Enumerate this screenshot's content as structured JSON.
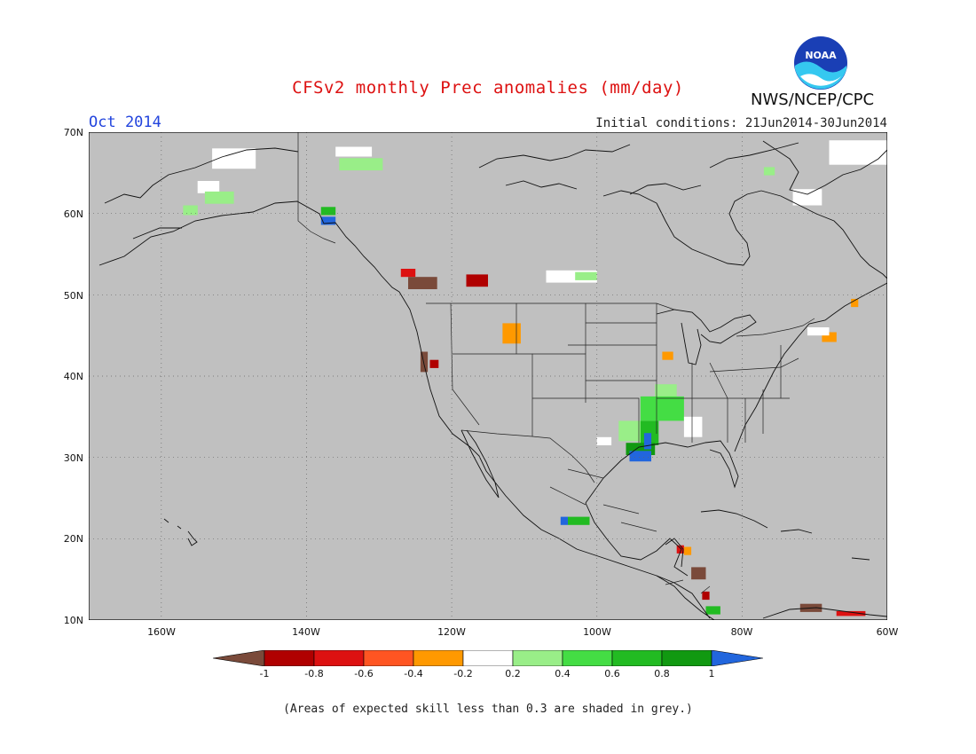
{
  "header": {
    "title": "CFSv2 monthly Prec anomalies (mm/day)",
    "month": "Oct 2014",
    "initial_conditions": "Initial conditions: 21Jun2014-30Jun2014",
    "organization": "NWS/NCEP/CPC",
    "logo_text": "NOAA"
  },
  "map": {
    "lon_range": [
      -170,
      -60
    ],
    "lat_range": [
      10,
      70
    ],
    "background_color": "#c0c0c0",
    "grid": "dotted",
    "y_ticks": [
      "70N",
      "60N",
      "50N",
      "40N",
      "30N",
      "20N",
      "10N"
    ],
    "x_ticks": [
      "160W",
      "140W",
      "120W",
      "100W",
      "80W",
      "60W"
    ]
  },
  "colorbar": {
    "labels": [
      "-1",
      "-0.8",
      "-0.6",
      "-0.4",
      "-0.2",
      "0.2",
      "0.4",
      "0.6",
      "0.8",
      "1"
    ],
    "colors": [
      "#7a4a3a",
      "#b00000",
      "#dd1111",
      "#ff5522",
      "#ff9900",
      "#ffffff",
      "#99ee88",
      "#44dd44",
      "#22bb22",
      "#119911",
      "#2266dd"
    ]
  },
  "anomaly_cells": [
    {
      "lon": -153,
      "lat": 65.5,
      "w": 6,
      "h": 2.5,
      "color": "#ffffff"
    },
    {
      "lon": -155,
      "lat": 62.5,
      "w": 3,
      "h": 1.5,
      "color": "#ffffff"
    },
    {
      "lon": -154,
      "lat": 61.2,
      "w": 4,
      "h": 1.5,
      "color": "#99ee88"
    },
    {
      "lon": -157,
      "lat": 59.8,
      "w": 2,
      "h": 1.2,
      "color": "#99ee88"
    },
    {
      "lon": -136,
      "lat": 67,
      "w": 5,
      "h": 1.2,
      "color": "#ffffff"
    },
    {
      "lon": -135.5,
      "lat": 65.3,
      "w": 6,
      "h": 1.5,
      "color": "#99ee88"
    },
    {
      "lon": -138,
      "lat": 59.8,
      "w": 2,
      "h": 1,
      "color": "#22bb22"
    },
    {
      "lon": -138,
      "lat": 58.6,
      "w": 2,
      "h": 1,
      "color": "#2266dd"
    },
    {
      "lon": -127,
      "lat": 52.2,
      "w": 2,
      "h": 1,
      "color": "#dd1111"
    },
    {
      "lon": -126,
      "lat": 50.7,
      "w": 4,
      "h": 1.5,
      "color": "#7a4a3a"
    },
    {
      "lon": -118,
      "lat": 51,
      "w": 3,
      "h": 1.5,
      "color": "#b00000"
    },
    {
      "lon": -113,
      "lat": 44,
      "w": 2.5,
      "h": 2.5,
      "color": "#ff9900"
    },
    {
      "lon": -124.3,
      "lat": 40.5,
      "w": 1,
      "h": 2.5,
      "color": "#7a4a3a"
    },
    {
      "lon": -123,
      "lat": 41,
      "w": 1.2,
      "h": 1,
      "color": "#b00000"
    },
    {
      "lon": -107,
      "lat": 51.5,
      "w": 7,
      "h": 1.5,
      "color": "#ffffff"
    },
    {
      "lon": -103,
      "lat": 51.8,
      "w": 3,
      "h": 1,
      "color": "#99ee88"
    },
    {
      "lon": -92,
      "lat": 37,
      "w": 3,
      "h": 2,
      "color": "#99ee88"
    },
    {
      "lon": -94,
      "lat": 34.5,
      "w": 6,
      "h": 3,
      "color": "#44dd44"
    },
    {
      "lon": -97,
      "lat": 32,
      "w": 5,
      "h": 2.5,
      "color": "#99ee88"
    },
    {
      "lon": -94,
      "lat": 31.5,
      "w": 2.5,
      "h": 3,
      "color": "#22bb22"
    },
    {
      "lon": -96,
      "lat": 30.3,
      "w": 4,
      "h": 1.5,
      "color": "#119911"
    },
    {
      "lon": -95.5,
      "lat": 29.5,
      "w": 3,
      "h": 1.3,
      "color": "#2266dd"
    },
    {
      "lon": -93.5,
      "lat": 31,
      "w": 1,
      "h": 2,
      "color": "#2266dd"
    },
    {
      "lon": -100,
      "lat": 31.5,
      "w": 2,
      "h": 1,
      "color": "#ffffff"
    },
    {
      "lon": -88,
      "lat": 32.5,
      "w": 2.5,
      "h": 2.5,
      "color": "#ffffff"
    },
    {
      "lon": -91,
      "lat": 42,
      "w": 1.5,
      "h": 1,
      "color": "#ff9900"
    },
    {
      "lon": -104,
      "lat": 21.7,
      "w": 3,
      "h": 1,
      "color": "#22bb22"
    },
    {
      "lon": -105,
      "lat": 21.7,
      "w": 1,
      "h": 1,
      "color": "#2266dd"
    },
    {
      "lon": -89,
      "lat": 18.2,
      "w": 1,
      "h": 1,
      "color": "#dd1111"
    },
    {
      "lon": -88,
      "lat": 18,
      "w": 1,
      "h": 1,
      "color": "#ff9900"
    },
    {
      "lon": -87,
      "lat": 15,
      "w": 2,
      "h": 1.5,
      "color": "#7a4a3a"
    },
    {
      "lon": -85.5,
      "lat": 12.5,
      "w": 1,
      "h": 1,
      "color": "#b00000"
    },
    {
      "lon": -85,
      "lat": 10.7,
      "w": 2,
      "h": 1,
      "color": "#22bb22"
    },
    {
      "lon": -72,
      "lat": 11,
      "w": 3,
      "h": 1,
      "color": "#7a4a3a"
    },
    {
      "lon": -67,
      "lat": 10.5,
      "w": 4,
      "h": 0.6,
      "color": "#dd1111"
    },
    {
      "lon": -69,
      "lat": 44.2,
      "w": 2,
      "h": 1.2,
      "color": "#ff9900"
    },
    {
      "lon": -65,
      "lat": 48.5,
      "w": 1,
      "h": 1,
      "color": "#ff9900"
    },
    {
      "lon": -71,
      "lat": 45,
      "w": 3,
      "h": 1,
      "color": "#ffffff"
    },
    {
      "lon": -68,
      "lat": 66,
      "w": 8,
      "h": 3,
      "color": "#ffffff"
    },
    {
      "lon": -73,
      "lat": 61,
      "w": 4,
      "h": 2,
      "color": "#ffffff"
    },
    {
      "lon": -77,
      "lat": 64.7,
      "w": 1.5,
      "h": 1,
      "color": "#99ee88"
    }
  ],
  "footnote": "(Areas of expected skill less than 0.3 are shaded in grey.)"
}
